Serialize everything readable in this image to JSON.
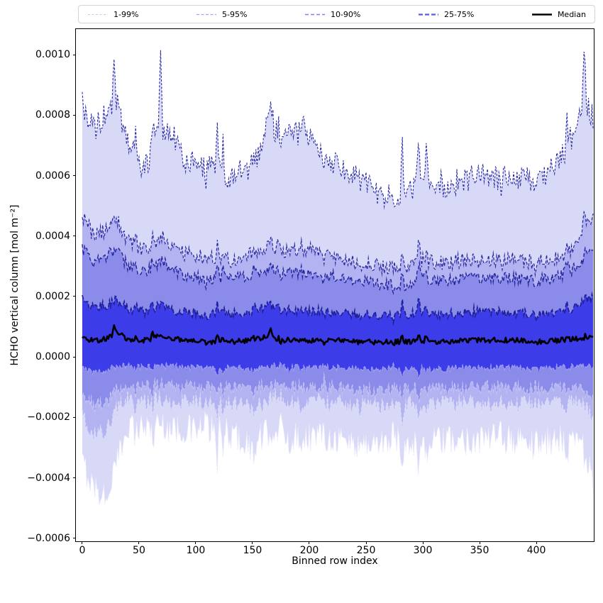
{
  "chart_data": {
    "type": "area",
    "subtype": "percentile-fan-chart",
    "title": "",
    "xlabel": "Binned row index",
    "ylabel": "HCHO vertical column [mol m⁻²]",
    "grid": false,
    "legend_position": "top",
    "xlim": [
      -5.6,
      450.6
    ],
    "ylim": [
      -0.00061,
      0.001085
    ],
    "xticks": [
      {
        "label": "0",
        "value": 0
      },
      {
        "label": "50",
        "value": 50
      },
      {
        "label": "100",
        "value": 100
      },
      {
        "label": "150",
        "value": 150
      },
      {
        "label": "200",
        "value": 200
      },
      {
        "label": "250",
        "value": 250
      },
      {
        "label": "300",
        "value": 300
      },
      {
        "label": "350",
        "value": 350
      },
      {
        "label": "400",
        "value": 400
      }
    ],
    "yticks": [
      {
        "label": "0.0010",
        "value": 0.001
      },
      {
        "label": "0.0008",
        "value": 0.0008
      },
      {
        "label": "0.0006",
        "value": 0.0006
      },
      {
        "label": "0.0004",
        "value": 0.0004
      },
      {
        "label": "0.0002",
        "value": 0.0002
      },
      {
        "label": "0.0000",
        "value": 0.0
      },
      {
        "label": "−0.0002",
        "value": -0.0002
      },
      {
        "label": "−0.0004",
        "value": -0.0004
      },
      {
        "label": "−0.0006",
        "value": -0.0006
      }
    ],
    "legend": [
      {
        "label": "1-99%",
        "color": "#c8c8ee",
        "width": 1.0,
        "dash": "3,2.5"
      },
      {
        "label": "5-95%",
        "color": "#a4a4e6",
        "width": 1.3,
        "dash": "4,2.5"
      },
      {
        "label": "10-90%",
        "color": "#7f7fee",
        "width": 1.6,
        "dash": "5,3"
      },
      {
        "label": "25-75%",
        "color": "#5a5ae4",
        "width": 2.2,
        "dash": "6,3"
      },
      {
        "label": "Median",
        "color": "#000000",
        "width": 2.6,
        "dash": ""
      }
    ],
    "bands": [
      {
        "label": "1-99%",
        "lo": "p1",
        "hi": "p99",
        "fill": "#d8d8f7",
        "hi_line": {
          "color": "#2a2aa4",
          "width": 1.1,
          "dash": [
            3,
            2.2
          ]
        },
        "lo_line": {
          "color": "#e9e9fc",
          "width": 1.0,
          "dash": [
            3,
            2.2
          ]
        }
      },
      {
        "label": "5-95%",
        "lo": "p5",
        "hi": "p95",
        "fill": "#b3b3f1",
        "hi_line": {
          "color": "#27279f",
          "width": 1.2,
          "dash": [
            4,
            2.6
          ]
        },
        "lo_line": {
          "color": "#dcdcf9",
          "width": 1.0,
          "dash": [
            4,
            2.6
          ]
        }
      },
      {
        "label": "10-90%",
        "lo": "p10",
        "hi": "p90",
        "fill": "#8b8bea",
        "hi_line": {
          "color": "#23239b",
          "width": 1.4,
          "dash": [
            5,
            3
          ]
        },
        "lo_line": {
          "color": "#c4c4f5",
          "width": 1.1,
          "dash": [
            5,
            3
          ]
        }
      },
      {
        "label": "25-75%",
        "lo": "p25",
        "hi": "p75",
        "fill": "#3c3ce9",
        "hi_line": {
          "color": "#1f1f96",
          "width": 1.7,
          "dash": [
            6,
            3
          ]
        },
        "lo_line": {
          "color": "#a0a0f2",
          "width": 1.2,
          "dash": [
            6,
            3
          ]
        }
      }
    ],
    "median_line": {
      "label": "Median",
      "color": "#000000",
      "width": 2.6
    },
    "n_points": 451,
    "value_scale": 0.0001,
    "anchors_x": [
      0,
      10,
      20,
      30,
      40,
      55,
      70,
      80,
      90,
      110,
      130,
      150,
      166,
      180,
      195,
      210,
      225,
      245,
      265,
      285,
      300,
      320,
      340,
      360,
      380,
      400,
      420,
      432,
      442,
      450
    ],
    "series": {
      "p99": {
        "noise": 0.45,
        "burst": 1.3,
        "anchors": [
          8.4,
          7.5,
          8.0,
          8.4,
          7.1,
          6.2,
          7.6,
          7.4,
          6.4,
          6.4,
          5.9,
          6.3,
          7.9,
          7.3,
          7.6,
          6.8,
          6.4,
          5.8,
          5.4,
          5.5,
          5.8,
          5.7,
          5.9,
          6.0,
          5.8,
          5.9,
          6.4,
          7.4,
          8.8,
          7.8
        ]
      },
      "p95": {
        "noise": 0.26,
        "burst": 0.55,
        "anchors": [
          4.7,
          4.0,
          4.2,
          4.6,
          3.8,
          3.5,
          4.0,
          3.7,
          3.4,
          3.3,
          3.2,
          3.4,
          3.8,
          3.5,
          3.6,
          3.4,
          3.3,
          3.1,
          3.0,
          3.0,
          3.2,
          3.1,
          3.2,
          3.2,
          3.2,
          3.1,
          3.3,
          3.6,
          4.2,
          4.6
        ]
      },
      "p90": {
        "noise": 0.2,
        "burst": 0.45,
        "anchors": [
          3.6,
          3.1,
          3.3,
          3.6,
          3.0,
          2.8,
          3.2,
          2.9,
          2.7,
          2.6,
          2.6,
          2.7,
          3.0,
          2.8,
          2.8,
          2.7,
          2.7,
          2.5,
          2.4,
          2.4,
          2.6,
          2.5,
          2.6,
          2.6,
          2.6,
          2.5,
          2.7,
          2.9,
          3.3,
          3.6
        ]
      },
      "p75": {
        "noise": 0.16,
        "burst": 0.35,
        "anchors": [
          1.9,
          1.6,
          1.7,
          1.9,
          1.6,
          1.5,
          1.7,
          1.5,
          1.5,
          1.4,
          1.4,
          1.5,
          1.7,
          1.5,
          1.5,
          1.5,
          1.5,
          1.4,
          1.35,
          1.4,
          1.5,
          1.4,
          1.5,
          1.5,
          1.45,
          1.4,
          1.5,
          1.6,
          1.8,
          2.0
        ]
      },
      "median": {
        "noise": 0.09,
        "burst": 0.22,
        "anchors": [
          0.65,
          0.55,
          0.6,
          0.8,
          0.6,
          0.55,
          0.7,
          0.6,
          0.55,
          0.5,
          0.5,
          0.55,
          0.68,
          0.55,
          0.55,
          0.55,
          0.55,
          0.5,
          0.5,
          0.5,
          0.55,
          0.5,
          0.55,
          0.55,
          0.55,
          0.5,
          0.55,
          0.6,
          0.62,
          0.65
        ]
      },
      "p25": {
        "noise": 0.11,
        "burst": -0.25,
        "anchors": [
          -0.3,
          -0.5,
          -0.45,
          -0.3,
          -0.3,
          -0.35,
          -0.3,
          -0.3,
          -0.35,
          -0.35,
          -0.35,
          -0.4,
          -0.3,
          -0.35,
          -0.35,
          -0.35,
          -0.35,
          -0.4,
          -0.4,
          -0.4,
          -0.35,
          -0.4,
          -0.35,
          -0.35,
          -0.35,
          -0.4,
          -0.35,
          -0.32,
          -0.3,
          -0.35
        ]
      },
      "p10": {
        "noise": 0.22,
        "burst": -0.45,
        "anchors": [
          -1.2,
          -1.6,
          -1.5,
          -1.1,
          -0.9,
          -1.0,
          -0.9,
          -1.0,
          -1.0,
          -1.0,
          -1.0,
          -1.1,
          -0.9,
          -1.0,
          -1.0,
          -1.0,
          -1.0,
          -1.1,
          -1.1,
          -1.05,
          -1.0,
          -1.05,
          -1.0,
          -1.0,
          -1.0,
          -1.1,
          -1.0,
          -0.95,
          -1.0,
          -1.3
        ]
      },
      "p5": {
        "noise": 0.3,
        "burst": -0.65,
        "anchors": [
          -2.0,
          -2.6,
          -2.5,
          -1.8,
          -1.4,
          -1.5,
          -1.4,
          -1.5,
          -1.5,
          -1.5,
          -1.55,
          -1.7,
          -1.4,
          -1.55,
          -1.5,
          -1.5,
          -1.55,
          -1.65,
          -1.6,
          -1.6,
          -1.55,
          -1.6,
          -1.55,
          -1.55,
          -1.55,
          -1.6,
          -1.5,
          -1.45,
          -1.6,
          -2.1
        ]
      },
      "p1": {
        "noise": 0.5,
        "burst": -1.0,
        "anchors": [
          -3.5,
          -4.3,
          -4.6,
          -3.6,
          -2.2,
          -2.3,
          -2.2,
          -2.4,
          -2.4,
          -2.4,
          -2.5,
          -3.0,
          -2.4,
          -2.7,
          -2.6,
          -2.6,
          -2.7,
          -2.9,
          -2.8,
          -2.8,
          -2.7,
          -2.8,
          -2.7,
          -2.7,
          -2.7,
          -2.9,
          -2.7,
          -2.6,
          -3.0,
          -4.2
        ]
      }
    },
    "spikes": [
      {
        "series": "p99",
        "x": 28,
        "v": 9.85
      },
      {
        "series": "p99",
        "x": 69,
        "v": 10.15
      },
      {
        "series": "p99",
        "x": 166,
        "v": 8.45
      },
      {
        "series": "p99",
        "x": 442,
        "v": 10.1
      },
      {
        "series": "p95",
        "x": 442,
        "v": 4.8
      },
      {
        "series": "median",
        "x": 28,
        "v": 1.05
      },
      {
        "series": "median",
        "x": 166,
        "v": 0.95
      },
      {
        "series": "p1",
        "x": 22,
        "v": -4.75
      }
    ]
  }
}
